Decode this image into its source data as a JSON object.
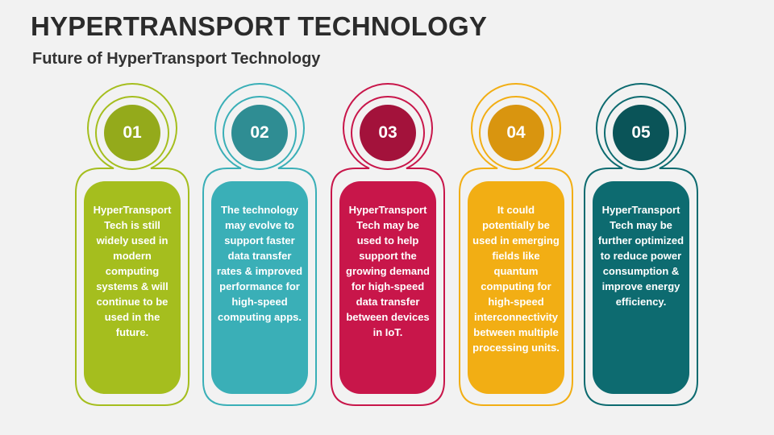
{
  "header": {
    "title": "HYPERTRANSPORT TECHNOLOGY",
    "subtitle": "Future of HyperTransport Technology"
  },
  "cards": [
    {
      "number": "01",
      "color": "#a5be1e",
      "text": "HyperTransport Tech is still widely used in modern computing systems & will continue to be used in the future."
    },
    {
      "number": "02",
      "color": "#3aafb7",
      "text": "The technology may evolve to support faster data transfer rates & improved performance for high-speed computing apps."
    },
    {
      "number": "03",
      "color": "#c8164a",
      "text": "HyperTransport Tech may be used to help support the growing demand for high-speed data transfer between devices in IoT."
    },
    {
      "number": "04",
      "color": "#f2ae14",
      "text": "It could potentially be used in emerging fields like quantum computing for high-speed interconnectivity between multiple processing units."
    },
    {
      "number": "05",
      "color": "#0d6b70",
      "text": "HyperTransport Tech may be further optimized to reduce power consumption & improve energy efficiency."
    }
  ],
  "circle_colors": [
    "#94aa1b",
    "#2f8d93",
    "#a3123b",
    "#d9950f",
    "#0a5458"
  ]
}
